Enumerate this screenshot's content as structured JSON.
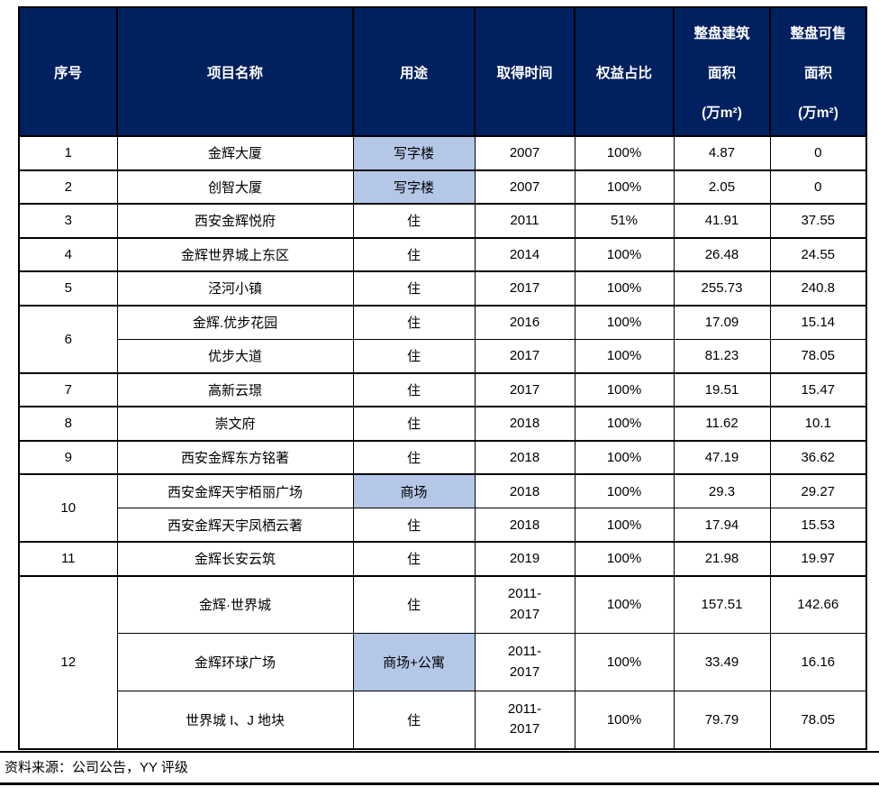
{
  "table": {
    "columns": [
      {
        "label": "序号"
      },
      {
        "label": "项目名称"
      },
      {
        "label": "用途"
      },
      {
        "label": "取得时间"
      },
      {
        "label": "权益占比"
      },
      {
        "line1": "整盘建筑",
        "line2": "面积",
        "line3": "(万m²)"
      },
      {
        "line1": "整盘可售",
        "line2": "面积",
        "line3": "(万m²)"
      }
    ],
    "groups": [
      {
        "index": "1",
        "rows": [
          {
            "name": "金辉大厦",
            "usage": "写字楼",
            "usage_highlight": true,
            "year": "2007",
            "equity": "100%",
            "gfa": "4.87",
            "saleable": "0"
          }
        ]
      },
      {
        "index": "2",
        "rows": [
          {
            "name": "创智大厦",
            "usage": "写字楼",
            "usage_highlight": true,
            "year": "2007",
            "equity": "100%",
            "gfa": "2.05",
            "saleable": "0"
          }
        ]
      },
      {
        "index": "3",
        "rows": [
          {
            "name": "西安金辉悦府",
            "usage": "住",
            "usage_highlight": false,
            "year": "2011",
            "equity": "51%",
            "gfa": "41.91",
            "saleable": "37.55"
          }
        ]
      },
      {
        "index": "4",
        "rows": [
          {
            "name": "金辉世界城上东区",
            "usage": "住",
            "usage_highlight": false,
            "year": "2014",
            "equity": "100%",
            "gfa": "26.48",
            "saleable": "24.55"
          }
        ]
      },
      {
        "index": "5",
        "rows": [
          {
            "name": "泾河小镇",
            "usage": "住",
            "usage_highlight": false,
            "year": "2017",
            "equity": "100%",
            "gfa": "255.73",
            "saleable": "240.8"
          }
        ]
      },
      {
        "index": "6",
        "rows": [
          {
            "name": "金辉.优步花园",
            "usage": "住",
            "usage_highlight": false,
            "year": "2016",
            "equity": "100%",
            "gfa": "17.09",
            "saleable": "15.14"
          },
          {
            "name": "优步大道",
            "usage": "住",
            "usage_highlight": false,
            "year": "2017",
            "equity": "100%",
            "gfa": "81.23",
            "saleable": "78.05"
          }
        ]
      },
      {
        "index": "7",
        "rows": [
          {
            "name": "高新云璟",
            "usage": "住",
            "usage_highlight": false,
            "year": "2017",
            "equity": "100%",
            "gfa": "19.51",
            "saleable": "15.47"
          }
        ]
      },
      {
        "index": "8",
        "rows": [
          {
            "name": "崇文府",
            "usage": "住",
            "usage_highlight": false,
            "year": "2018",
            "equity": "100%",
            "gfa": "11.62",
            "saleable": "10.1"
          }
        ]
      },
      {
        "index": "9",
        "rows": [
          {
            "name": "西安金辉东方铭著",
            "usage": "住",
            "usage_highlight": false,
            "year": "2018",
            "equity": "100%",
            "gfa": "47.19",
            "saleable": "36.62"
          }
        ]
      },
      {
        "index": "10",
        "rows": [
          {
            "name": "西安金辉天宇栢丽广场",
            "usage": "商场",
            "usage_highlight": true,
            "year": "2018",
            "equity": "100%",
            "gfa": "29.3",
            "saleable": "29.27"
          },
          {
            "name": "西安金辉天宇凤栖云著",
            "usage": "住",
            "usage_highlight": false,
            "year": "2018",
            "equity": "100%",
            "gfa": "17.94",
            "saleable": "15.53"
          }
        ]
      },
      {
        "index": "11",
        "rows": [
          {
            "name": "金辉长安云筑",
            "usage": "住",
            "usage_highlight": false,
            "year": "2019",
            "equity": "100%",
            "gfa": "21.98",
            "saleable": "19.97"
          }
        ]
      },
      {
        "index": "12",
        "tall": true,
        "rows": [
          {
            "name": "金辉·世界城",
            "usage": "住",
            "usage_highlight": false,
            "year": "2011-2017",
            "equity": "100%",
            "gfa": "157.51",
            "saleable": "142.66"
          },
          {
            "name": "金辉环球广场",
            "usage": "商场+公寓",
            "usage_highlight": true,
            "year": "2011-2017",
            "equity": "100%",
            "gfa": "33.49",
            "saleable": "16.16"
          },
          {
            "name": "世界城 I、J 地块",
            "usage": "住",
            "usage_highlight": false,
            "year": "2011-2017",
            "equity": "100%",
            "gfa": "79.79",
            "saleable": "78.05"
          }
        ]
      }
    ]
  },
  "footer": {
    "source": "资料来源：公司公告，YY 评级"
  },
  "colors": {
    "header_bg": "#002060",
    "header_text": "#ffffff",
    "highlight_bg": "#b4c7e7",
    "border": "#000000"
  }
}
